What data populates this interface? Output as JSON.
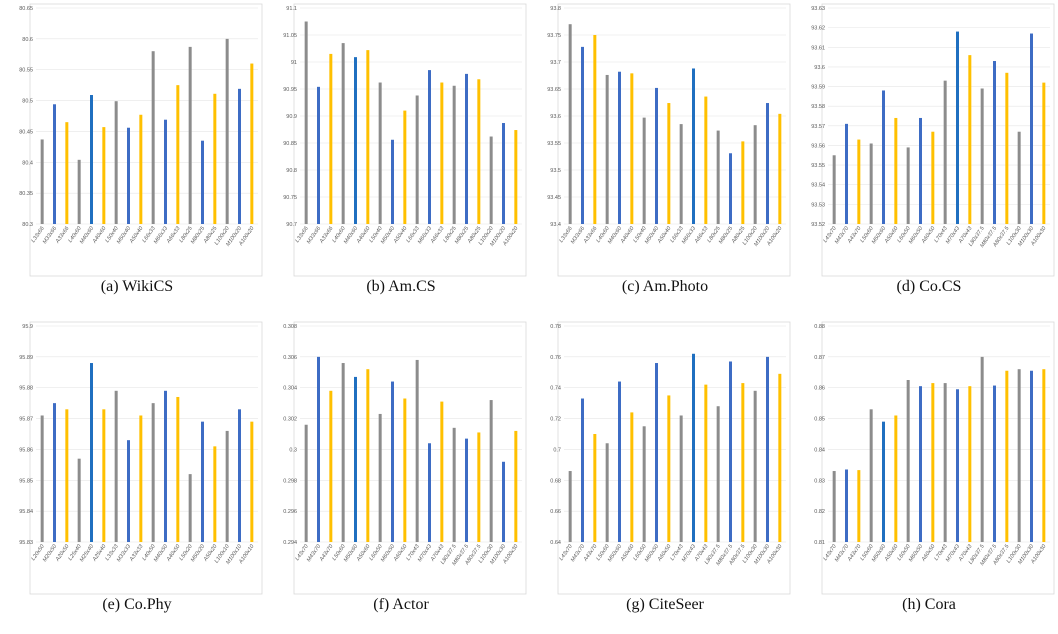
{
  "colors": {
    "L": "#8c8c8c",
    "M": "#3d6cc4",
    "A": "#ffc000",
    "highlight": "#1f6fc0"
  },
  "chart_data": [
    {
      "type": "bar",
      "caption": "(a) WikiCS",
      "categories": [
        "L33x66",
        "M33x66",
        "A33x66",
        "L40x60",
        "M40x60",
        "A40x60",
        "L50x40",
        "M50x40",
        "A50x40",
        "L66x33",
        "M66x33",
        "A66x33",
        "L80x25",
        "M80x25",
        "A80x25",
        "L100x20",
        "M100x20",
        "A100x20"
      ],
      "values": [
        80.437,
        80.494,
        80.465,
        80.404,
        80.509,
        80.457,
        80.499,
        80.456,
        80.477,
        80.58,
        80.469,
        80.525,
        80.587,
        80.435,
        80.511,
        80.6,
        80.519,
        80.56
      ],
      "groups": [
        "L",
        "M",
        "A",
        "L",
        "M",
        "A",
        "L",
        "M",
        "A",
        "L",
        "M",
        "A",
        "L",
        "M",
        "A",
        "L",
        "M",
        "A"
      ],
      "highlight_index": 4,
      "ylim": [
        80.3,
        80.65
      ],
      "yticks": [
        "80.3",
        "80.35",
        "80.4",
        "80.45",
        "80.5",
        "80.55",
        "80.6",
        "80.65"
      ]
    },
    {
      "type": "bar",
      "caption": "(b) Am.CS",
      "categories": [
        "L33x66",
        "M33x66",
        "A33x66",
        "L40x60",
        "M40x60",
        "A40x60",
        "L50x40",
        "M50x40",
        "A50x40",
        "L66x33",
        "M66x33",
        "A66x33",
        "L80x25",
        "M80x25",
        "A80x25",
        "L100x20",
        "M100x20",
        "A100x20"
      ],
      "values": [
        91.075,
        90.954,
        91.015,
        91.035,
        91.009,
        91.022,
        90.962,
        90.856,
        90.91,
        90.938,
        90.985,
        90.962,
        90.956,
        90.978,
        90.968,
        90.862,
        90.887,
        90.874
      ],
      "groups": [
        "L",
        "M",
        "A",
        "L",
        "M",
        "A",
        "L",
        "M",
        "A",
        "L",
        "M",
        "A",
        "L",
        "M",
        "A",
        "L",
        "M",
        "A"
      ],
      "highlight_index": 4,
      "ylim": [
        90.7,
        91.1
      ],
      "yticks": [
        "90.7",
        "90.75",
        "90.8",
        "90.85",
        "90.9",
        "90.95",
        "91",
        "91.05",
        "91.1"
      ]
    },
    {
      "type": "bar",
      "caption": "(c) Am.Photo",
      "categories": [
        "L33x66",
        "M33x66",
        "A33x66",
        "L40x60",
        "M40x60",
        "A40x60",
        "L50x40",
        "M50x40",
        "A50x40",
        "L66x33",
        "M66x33",
        "A66x33",
        "L80x25",
        "M80x25",
        "A80x25",
        "L100x20",
        "M100x20",
        "A100x20"
      ],
      "values": [
        93.77,
        93.728,
        93.75,
        93.676,
        93.682,
        93.679,
        93.597,
        93.652,
        93.624,
        93.585,
        93.688,
        93.636,
        93.573,
        93.531,
        93.553,
        93.583,
        93.624,
        93.604
      ],
      "groups": [
        "L",
        "M",
        "A",
        "L",
        "M",
        "A",
        "L",
        "M",
        "A",
        "L",
        "M",
        "A",
        "L",
        "M",
        "A",
        "L",
        "M",
        "A"
      ],
      "highlight_index": 10,
      "ylim": [
        93.4,
        93.8
      ],
      "yticks": [
        "93.4",
        "93.45",
        "93.5",
        "93.55",
        "93.6",
        "93.65",
        "93.7",
        "93.75",
        "93.8"
      ]
    },
    {
      "type": "bar",
      "caption": "(d) Co.CS",
      "categories": [
        "L43x70",
        "M43x70",
        "A43x70",
        "L50x60",
        "M50x60",
        "A50x60",
        "L60x50",
        "M60x50",
        "A60x50",
        "L70x43",
        "M70x43",
        "A70x43",
        "L80x37.5",
        "M80x37.5",
        "A80x37.5",
        "L100x30",
        "M100x30",
        "A100x30"
      ],
      "values": [
        93.555,
        93.571,
        93.563,
        93.561,
        93.588,
        93.574,
        93.559,
        93.574,
        93.567,
        93.593,
        93.618,
        93.606,
        93.589,
        93.603,
        93.597,
        93.567,
        93.617,
        93.592
      ],
      "groups": [
        "L",
        "M",
        "A",
        "L",
        "M",
        "A",
        "L",
        "M",
        "A",
        "L",
        "M",
        "A",
        "L",
        "M",
        "A",
        "L",
        "M",
        "A"
      ],
      "highlight_index": 10,
      "ylim": [
        93.52,
        93.63
      ],
      "yticks": [
        "93.52",
        "93.53",
        "93.54",
        "93.55",
        "93.56",
        "93.57",
        "93.58",
        "93.59",
        "93.6",
        "93.61",
        "93.62",
        "93.63"
      ]
    },
    {
      "type": "bar",
      "caption": "(e) Co.Phy",
      "categories": [
        "L20x50",
        "M20x50",
        "A20x50",
        "L25x40",
        "M25x40",
        "A25x40",
        "L33x33",
        "M33x33",
        "A33x33",
        "L40x50",
        "M40x50",
        "A40x50",
        "L50x20",
        "M50x20",
        "A50x20",
        "L100x10",
        "M100x10",
        "A100x10"
      ],
      "values": [
        95.871,
        95.875,
        95.873,
        95.857,
        95.888,
        95.873,
        95.879,
        95.863,
        95.871,
        95.875,
        95.879,
        95.877,
        95.852,
        95.869,
        95.861,
        95.866,
        95.873,
        95.869
      ],
      "groups": [
        "L",
        "M",
        "A",
        "L",
        "M",
        "A",
        "L",
        "M",
        "A",
        "L",
        "M",
        "A",
        "L",
        "M",
        "A",
        "L",
        "M",
        "A"
      ],
      "highlight_index": 4,
      "ylim": [
        95.83,
        95.9
      ],
      "yticks": [
        "95.83",
        "95.84",
        "95.85",
        "95.86",
        "95.87",
        "95.88",
        "95.89",
        "95.9"
      ]
    },
    {
      "type": "bar",
      "caption": "(f) Actor",
      "categories": [
        "L43x70",
        "M43x70",
        "A43x70",
        "L50x60",
        "M50x60",
        "A50x60",
        "L60x50",
        "M60x50",
        "A60x50",
        "L70x43",
        "M70x43",
        "A70x43",
        "L80x37.5",
        "M80x37.5",
        "A80x37.5",
        "L100x30",
        "M100x30",
        "A100x30"
      ],
      "values": [
        0.3016,
        0.306,
        0.3038,
        0.3056,
        0.3047,
        0.3052,
        0.3023,
        0.3044,
        0.3033,
        0.3058,
        0.3004,
        0.3031,
        0.3014,
        0.3007,
        0.3011,
        0.3032,
        0.2992,
        0.3012
      ],
      "groups": [
        "L",
        "M",
        "A",
        "L",
        "M",
        "A",
        "L",
        "M",
        "A",
        "L",
        "M",
        "A",
        "L",
        "M",
        "A",
        "L",
        "M",
        "A"
      ],
      "highlight_index": 4,
      "ylim": [
        0.294,
        0.308
      ],
      "yticks": [
        "0.294",
        "0.296",
        "0.298",
        "0.3",
        "0.302",
        "0.304",
        "0.306",
        "0.308"
      ]
    },
    {
      "type": "bar",
      "caption": "(g) CiteSeer",
      "categories": [
        "L43x70",
        "M43x70",
        "A43x70",
        "L50x60",
        "M50x60",
        "A50x60",
        "L60x50",
        "M60x50",
        "A60x50",
        "L70x43",
        "M70x43",
        "A70x43",
        "L80x37.5",
        "M80x37.5",
        "A80x37.5",
        "L100x30",
        "M100x30",
        "A100x30"
      ],
      "values": [
        0.686,
        0.733,
        0.71,
        0.704,
        0.744,
        0.724,
        0.715,
        0.756,
        0.735,
        0.722,
        0.762,
        0.742,
        0.728,
        0.757,
        0.743,
        0.738,
        0.76,
        0.749
      ],
      "groups": [
        "L",
        "M",
        "A",
        "L",
        "M",
        "A",
        "L",
        "M",
        "A",
        "L",
        "M",
        "A",
        "L",
        "M",
        "A",
        "L",
        "M",
        "A"
      ],
      "highlight_index": 10,
      "ylim": [
        0.64,
        0.78
      ],
      "yticks": [
        "0.64",
        "0.66",
        "0.68",
        "0.7",
        "0.72",
        "0.74",
        "0.76",
        "0.78"
      ]
    },
    {
      "type": "bar",
      "caption": "(h) Cora",
      "categories": [
        "L43x70",
        "M43x70",
        "A43x70",
        "L50x60",
        "M50x60",
        "A50x60",
        "L60x50",
        "M60x50",
        "A60x50",
        "L70x43",
        "M70x43",
        "A70x43",
        "L80x37.5",
        "M80x37.5",
        "A80x37.5",
        "L100x30",
        "M100x30",
        "A100x30"
      ],
      "values": [
        0.833,
        0.8335,
        0.8333,
        0.853,
        0.849,
        0.851,
        0.8625,
        0.8605,
        0.8615,
        0.8615,
        0.8595,
        0.8605,
        0.87,
        0.8607,
        0.8655,
        0.866,
        0.8655,
        0.866
      ],
      "groups": [
        "L",
        "M",
        "A",
        "L",
        "M",
        "A",
        "L",
        "M",
        "A",
        "L",
        "M",
        "A",
        "L",
        "M",
        "A",
        "L",
        "M",
        "A"
      ],
      "highlight_index": 4,
      "ylim": [
        0.81,
        0.88
      ],
      "yticks": [
        "0.81",
        "0.82",
        "0.83",
        "0.84",
        "0.85",
        "0.86",
        "0.87",
        "0.88"
      ]
    }
  ]
}
